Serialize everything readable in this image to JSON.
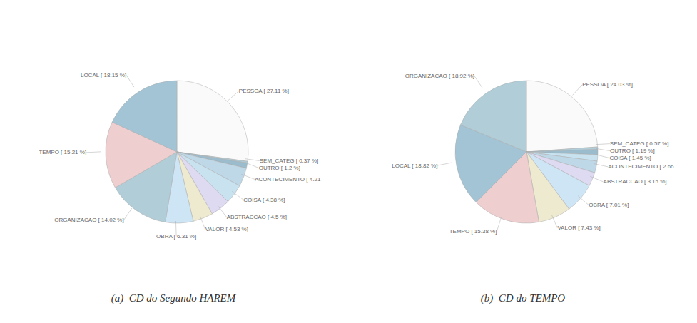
{
  "chart_data": [
    {
      "type": "pie",
      "title": "(a)  CD do Segundo HAREM",
      "categories": [
        "PESSOA [ 27.11 %]",
        "SEM_CATEG [ 0.37 %]",
        "OUTRO [ 1.2 %]",
        "ACONTECIMENTO [ 4.21",
        "COISA [ 4.38 %]",
        "ABSTRACCAO [ 4.5 %]",
        "VALOR [ 4.53 %]",
        "OBRA [ 6.31 %]",
        "ORGANIZACAO [ 14.02 %]",
        "TEMPO [ 15.21 %]",
        "LOCAL [ 18.15 %]"
      ],
      "values": [
        27.11,
        0.37,
        1.2,
        4.21,
        4.38,
        4.5,
        4.53,
        6.31,
        14.02,
        15.21,
        18.15
      ],
      "colors": [
        "#fafafa",
        "#b0cdd8",
        "#9bbccc",
        "#bed8e8",
        "#c8e2ef",
        "#dddaf2",
        "#eeead0",
        "#cde5f5",
        "#b0cdd8",
        "#eecece",
        "#a2c4d5"
      ]
    },
    {
      "type": "pie",
      "title": "(b)  CD do TEMPO",
      "categories": [
        "PESSOA [ 24.03 %]",
        "SEM_CATEG [ 0.57 %]",
        "OUTRO [ 1.19 %]",
        "COISA [ 1.45 %]",
        "ACONTECIMENTO [ 2.66",
        "ABSTRACCAO [ 3.15 %]",
        "OBRA [ 7.01 %]",
        "VALOR [ 7.43 %]",
        "TEMPO [ 15.38 %]",
        "LOCAL [ 18.82 %]",
        "ORGANIZACAO [ 18.92 %]"
      ],
      "values": [
        24.03,
        0.57,
        1.19,
        1.45,
        2.66,
        3.15,
        7.01,
        7.43,
        15.38,
        18.82,
        18.92
      ],
      "colors": [
        "#fafafa",
        "#b0cdd8",
        "#9bbccc",
        "#c8e2ef",
        "#bed8e8",
        "#dddaf2",
        "#cde5f5",
        "#eeead0",
        "#eecece",
        "#a2c4d5",
        "#b0cdd8"
      ]
    }
  ]
}
